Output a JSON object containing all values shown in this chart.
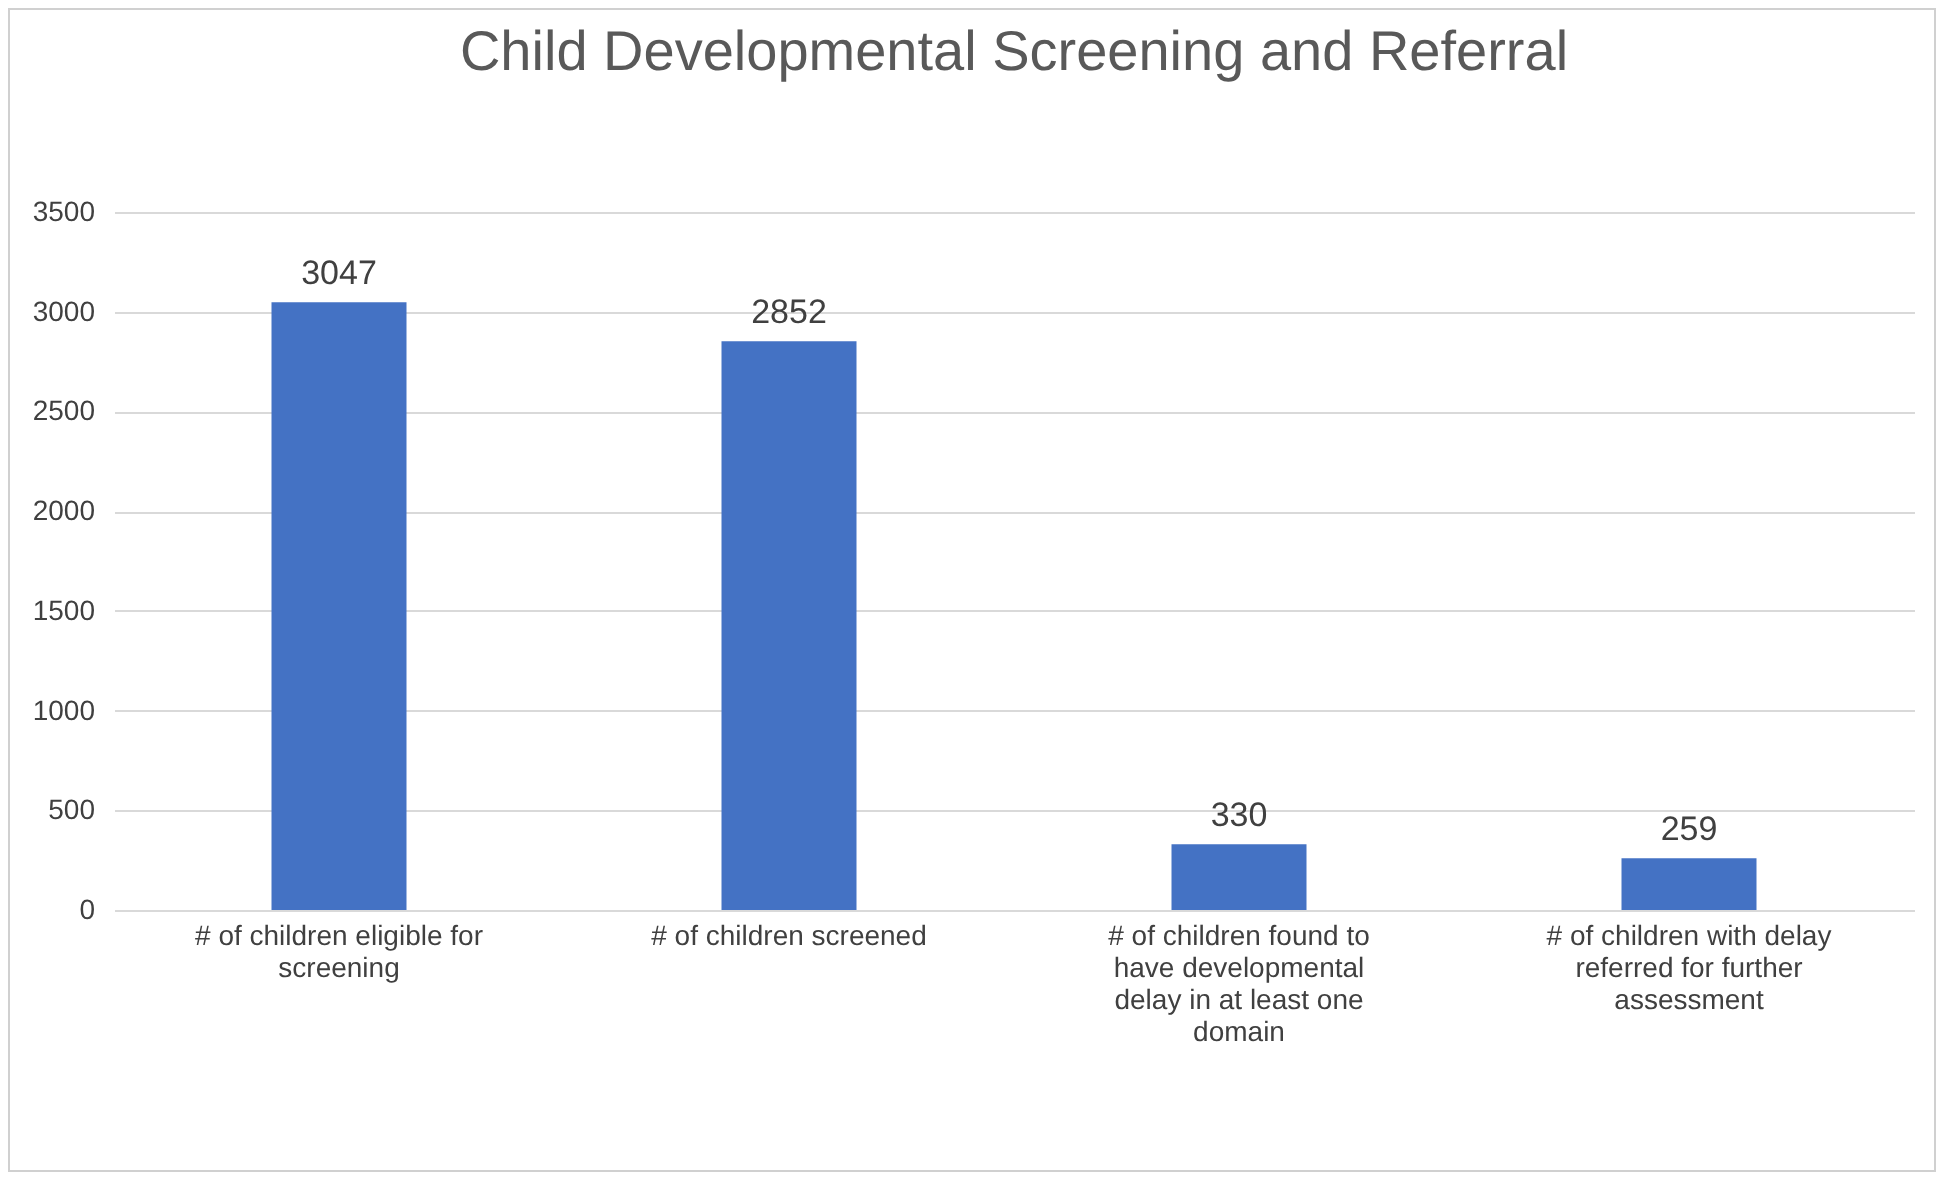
{
  "chart_data": {
    "type": "bar",
    "title": "Child Developmental Screening and Referral",
    "categories": [
      "# of children eligible for screening",
      "# of children screened",
      "# of children found to have developmental delay in at least one domain",
      "# of children with delay referred for further assessment"
    ],
    "values": [
      3047,
      2852,
      330,
      259
    ],
    "color": "#4472c4",
    "ylim": [
      0,
      3500
    ],
    "yticks": [
      0,
      500,
      1000,
      1500,
      2000,
      2500,
      3000,
      3500
    ],
    "grid": "y",
    "data_labels": true
  }
}
